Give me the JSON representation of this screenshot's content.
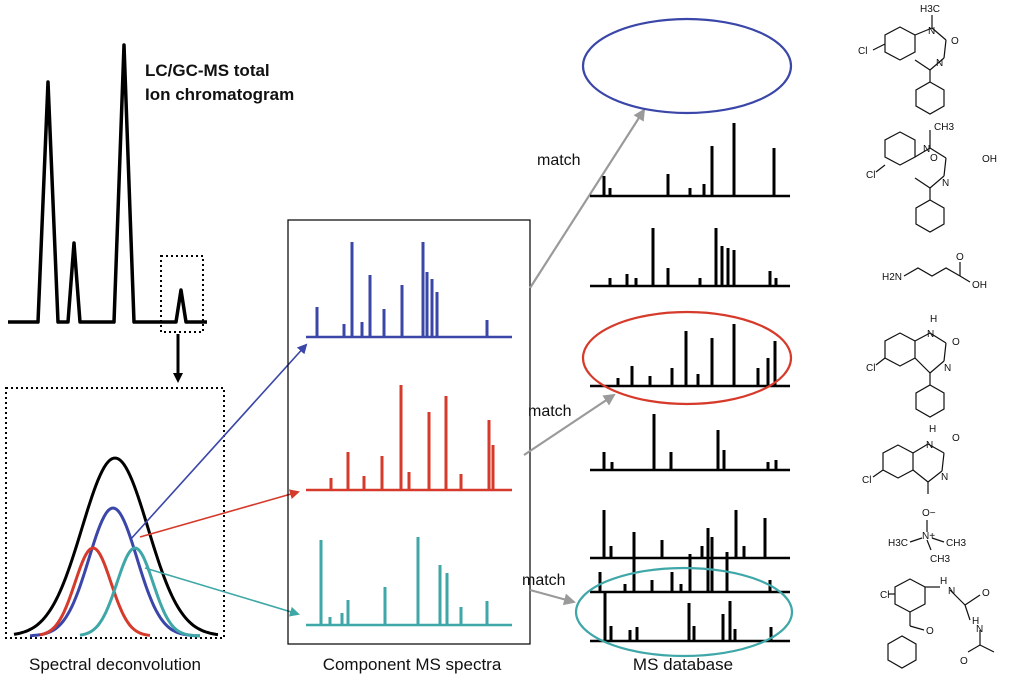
{
  "labels": {
    "tic_title_line1": "LC/GC-MS total",
    "tic_title_line2": "Ion chromatogram",
    "deconvolution": "Spectral deconvolution",
    "component": "Component MS spectra",
    "database": "MS database",
    "match": "match"
  },
  "colors": {
    "blue": "#3a46a8",
    "red": "#d63a2a",
    "teal": "#3fa7a7",
    "gray": "#9a9a9a",
    "black": "#000000"
  },
  "structures": [
    {
      "name": "diazepam",
      "atoms": [
        "H3C",
        "N",
        "O",
        "Cl",
        "N"
      ]
    },
    {
      "name": "temazepam",
      "atoms": [
        "CH3",
        "N",
        "O",
        "OH",
        "Cl",
        "N"
      ]
    },
    {
      "name": "gaba",
      "atoms": [
        "H2N",
        "O",
        "OH"
      ]
    },
    {
      "name": "nordazepam",
      "atoms": [
        "H",
        "N",
        "O",
        "Cl",
        "N"
      ]
    },
    {
      "name": "tetrahydro-benzodiazepine",
      "atoms": [
        "H",
        "N",
        "O",
        "Cl",
        "N"
      ]
    },
    {
      "name": "trimethylamine-n-oxide",
      "atoms": [
        "O−",
        "N+",
        "H3C",
        "CH3",
        "CH3"
      ]
    },
    {
      "name": "benzophenone-glycinamide",
      "atoms": [
        "Cl",
        "H",
        "N",
        "O",
        "O",
        "H",
        "N",
        "O"
      ]
    }
  ]
}
